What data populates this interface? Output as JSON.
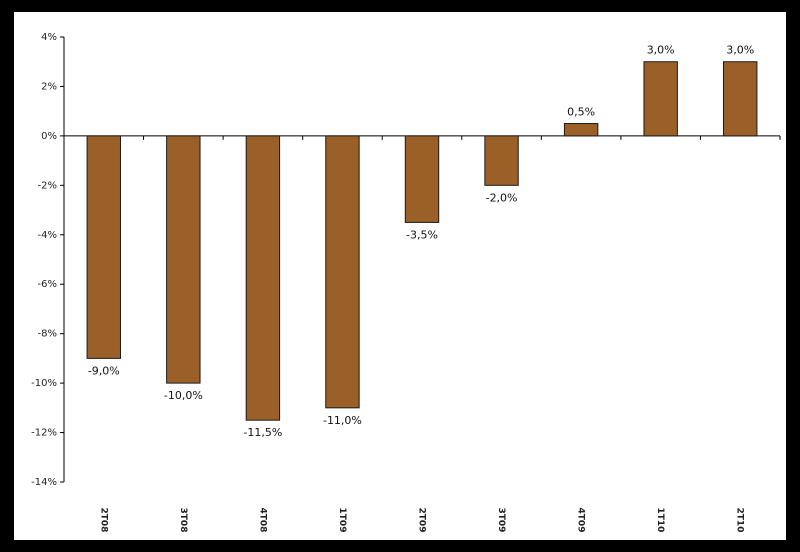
{
  "chart_data": {
    "type": "bar",
    "title": "",
    "xlabel": "",
    "ylabel": "",
    "categories": [
      "2T08",
      "3T08",
      "4T08",
      "1T09",
      "2T09",
      "3T09",
      "4T09",
      "1T10",
      "2T10"
    ],
    "values": [
      -9.0,
      -10.0,
      -11.5,
      -11.0,
      -3.5,
      -2.0,
      0.5,
      3.0,
      3.0
    ],
    "data_labels": [
      "-9,0%",
      "-10,0%",
      "-11,5%",
      "-11,0%",
      "-3,5%",
      "-2,0%",
      "0,5%",
      "3,0%",
      "3,0%"
    ],
    "ylim": [
      -14,
      4
    ],
    "yticks": [
      4,
      2,
      0,
      -2,
      -4,
      -6,
      -8,
      -10,
      -12,
      -14
    ],
    "ytick_labels": [
      "4%",
      "2%",
      "0%",
      "-2%",
      "-4%",
      "-6%",
      "-8%",
      "-10%",
      "-12%",
      "-14%"
    ],
    "grid": false,
    "legend": "none",
    "bar_color": "#9b6028",
    "bar_edge_color": "#1a1a1a",
    "axis_color": "#000000"
  }
}
